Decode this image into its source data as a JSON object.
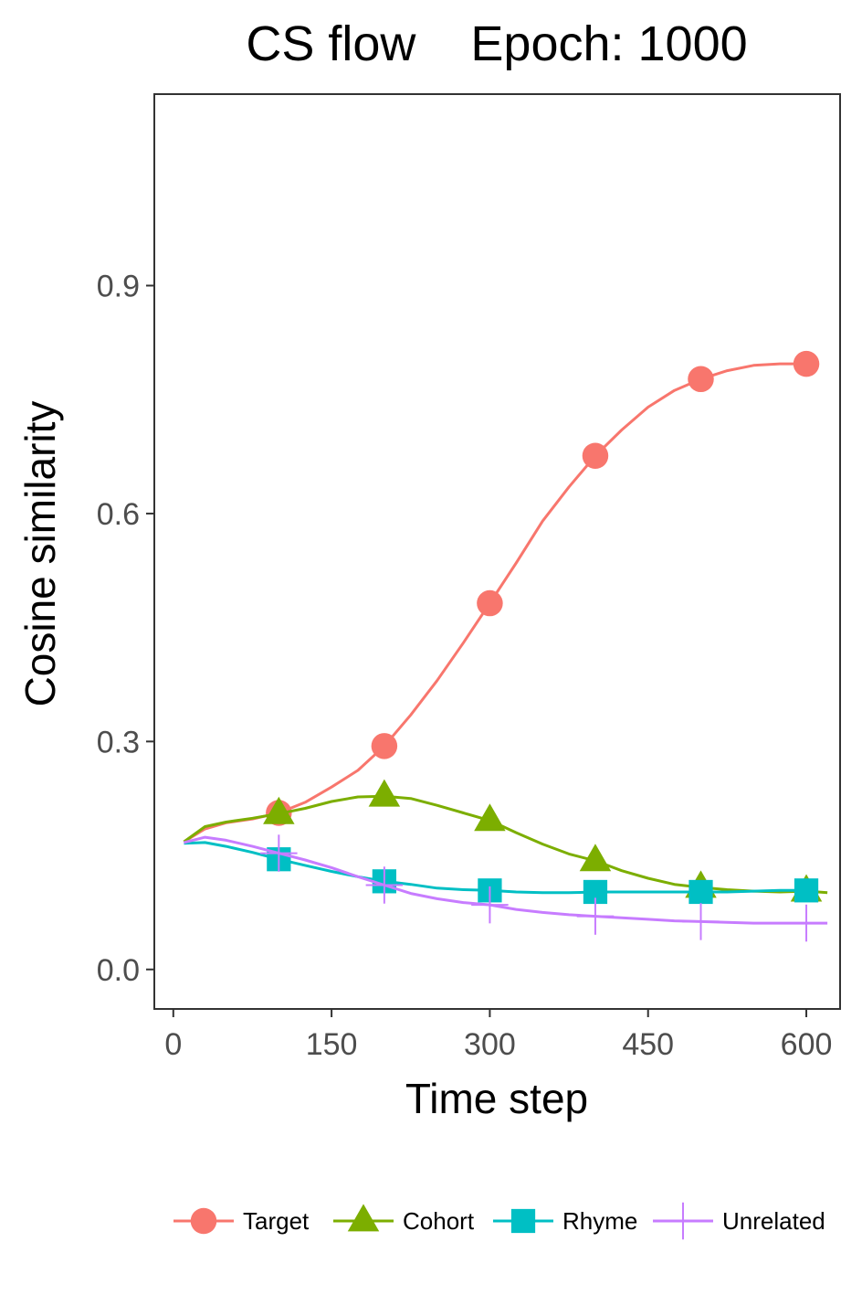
{
  "chart_data": {
    "type": "line",
    "title": "CS flow    Epoch: 1000",
    "xlabel": "Time step",
    "ylabel": "Cosine similarity",
    "xlim": [
      -18,
      632
    ],
    "ylim": [
      -0.052,
      1.152
    ],
    "xticks": [
      0,
      150,
      300,
      450,
      600
    ],
    "yticks": [
      0.0,
      0.3,
      0.6,
      0.9
    ],
    "xtick_labels": [
      "0",
      "150",
      "300",
      "450",
      "600"
    ],
    "ytick_labels": [
      "0.0",
      "0.3",
      "0.6",
      "0.9"
    ],
    "grid": false,
    "legend_position": "bottom",
    "series": [
      {
        "name": "Target",
        "color": "#F8766D",
        "marker": "circle",
        "markers": {
          "x": [
            100,
            200,
            300,
            400,
            500,
            600
          ],
          "y": [
            0.206,
            0.294,
            0.482,
            0.676,
            0.777,
            0.797
          ]
        },
        "line": {
          "x": [
            10,
            30,
            50,
            75,
            100,
            125,
            150,
            175,
            200,
            225,
            250,
            275,
            300,
            325,
            350,
            375,
            400,
            425,
            450,
            475,
            500,
            525,
            550,
            575,
            600
          ],
          "y": [
            0.168,
            0.185,
            0.193,
            0.198,
            0.206,
            0.22,
            0.24,
            0.262,
            0.294,
            0.335,
            0.38,
            0.43,
            0.482,
            0.535,
            0.59,
            0.635,
            0.676,
            0.71,
            0.74,
            0.762,
            0.777,
            0.788,
            0.795,
            0.797,
            0.797
          ]
        }
      },
      {
        "name": "Cohort",
        "color": "#7CAE00",
        "marker": "triangle",
        "markers": {
          "x": [
            100,
            200,
            300,
            400,
            500,
            600
          ],
          "y": [
            0.205,
            0.228,
            0.196,
            0.143,
            0.108,
            0.103
          ]
        },
        "line": {
          "x": [
            10,
            30,
            50,
            75,
            100,
            125,
            150,
            175,
            200,
            225,
            250,
            275,
            300,
            325,
            350,
            375,
            400,
            425,
            450,
            475,
            500,
            525,
            550,
            575,
            600,
            620
          ],
          "y": [
            0.168,
            0.188,
            0.194,
            0.199,
            0.205,
            0.212,
            0.221,
            0.227,
            0.228,
            0.225,
            0.216,
            0.206,
            0.196,
            0.18,
            0.165,
            0.152,
            0.143,
            0.13,
            0.12,
            0.112,
            0.108,
            0.105,
            0.103,
            0.102,
            0.103,
            0.101
          ]
        }
      },
      {
        "name": "Rhyme",
        "color": "#00BFC4",
        "marker": "square",
        "markers": {
          "x": [
            100,
            200,
            300,
            400,
            500,
            600
          ],
          "y": [
            0.145,
            0.116,
            0.104,
            0.102,
            0.102,
            0.104
          ]
        },
        "line": {
          "x": [
            10,
            30,
            50,
            75,
            100,
            125,
            150,
            175,
            200,
            225,
            250,
            275,
            300,
            325,
            350,
            375,
            400,
            425,
            450,
            475,
            500,
            525,
            550,
            575,
            600
          ],
          "y": [
            0.166,
            0.167,
            0.162,
            0.154,
            0.145,
            0.137,
            0.129,
            0.122,
            0.116,
            0.112,
            0.107,
            0.105,
            0.104,
            0.102,
            0.101,
            0.101,
            0.102,
            0.102,
            0.102,
            0.102,
            0.102,
            0.102,
            0.103,
            0.104,
            0.104
          ]
        }
      },
      {
        "name": "Unrelated",
        "color": "#C77CFF",
        "marker": "plus",
        "markers": {
          "x": [
            100,
            200,
            300,
            400,
            500,
            600
          ],
          "y": [
            0.153,
            0.111,
            0.085,
            0.07,
            0.063,
            0.061
          ]
        },
        "line": {
          "x": [
            10,
            30,
            50,
            75,
            100,
            125,
            150,
            175,
            200,
            225,
            250,
            275,
            300,
            325,
            350,
            375,
            400,
            425,
            450,
            475,
            500,
            525,
            550,
            575,
            600,
            620
          ],
          "y": [
            0.167,
            0.174,
            0.17,
            0.162,
            0.153,
            0.144,
            0.134,
            0.122,
            0.111,
            0.1,
            0.093,
            0.088,
            0.085,
            0.079,
            0.075,
            0.072,
            0.07,
            0.068,
            0.066,
            0.064,
            0.063,
            0.062,
            0.061,
            0.061,
            0.061,
            0.061
          ]
        }
      }
    ]
  }
}
